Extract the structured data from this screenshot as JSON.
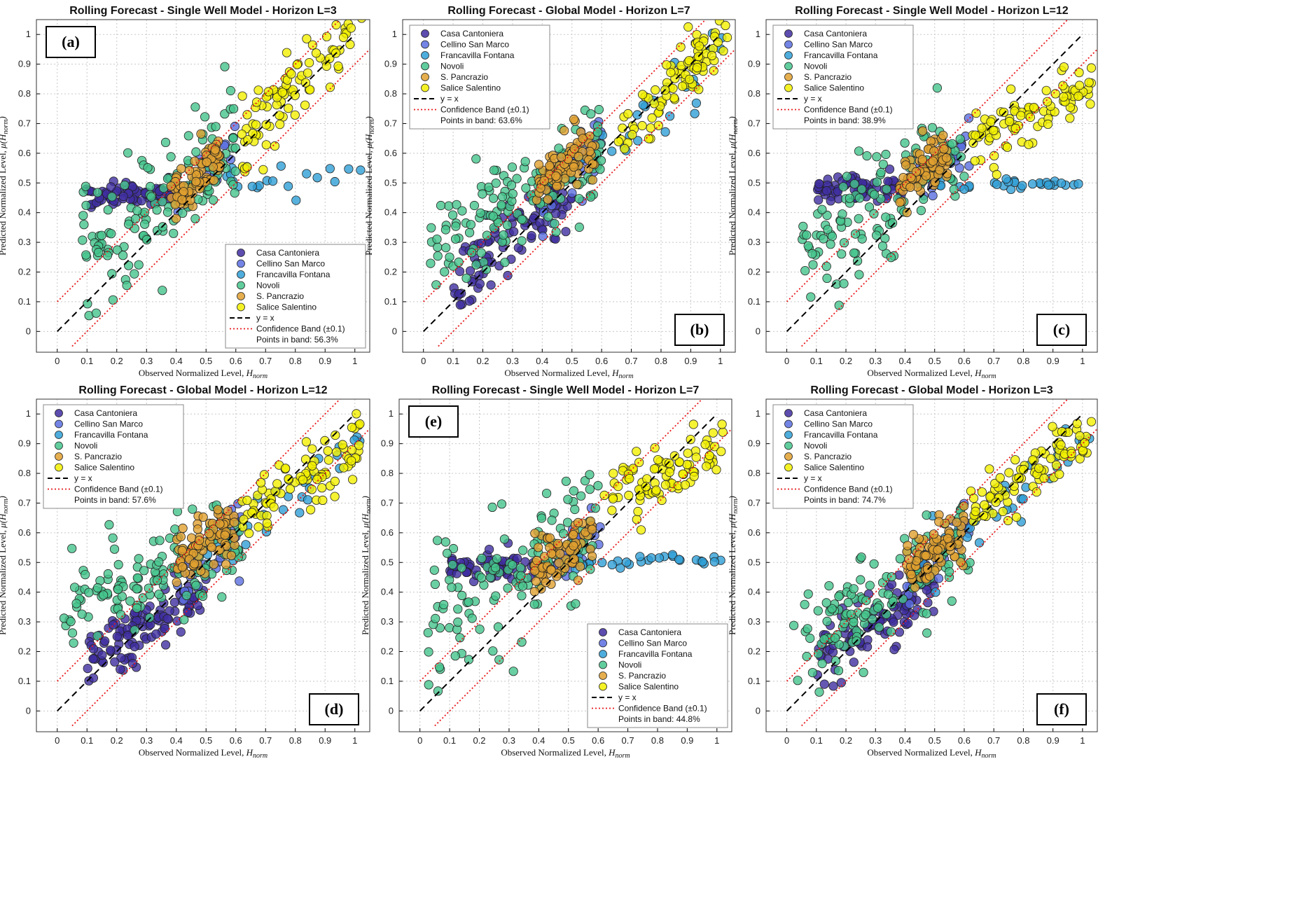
{
  "colors": {
    "Casa Cantoniera": "#3f2ea0",
    "Cellino San Marco": "#5a6ee0",
    "Francavilla Fontana": "#2f9fd6",
    "Novoli": "#45c48c",
    "S. Pancrazio": "#e0a030",
    "Salice Salentino": "#f2f000",
    "yx_line": "#000000",
    "band_line": "#e8191c"
  },
  "common": {
    "xlabel": "Observed Normalized Level, ",
    "xlabel_sym": "H",
    "xlabel_sub": "norm",
    "ylabel": "Predicted Normalized Level, ",
    "ylabel_sym": "μ(H",
    "ylabel_sub": "norm",
    "ylabel_end": ")",
    "legend_wells": [
      "Casa Cantoniera",
      "Cellino San Marco",
      "Francavilla Fontana",
      "Novoli",
      "S. Pancrazio",
      "Salice Salentino"
    ],
    "legend_yx": "y = x",
    "legend_band": "Confidence Band (±0.1)",
    "xticks": [
      "0",
      "0.1",
      "0.2",
      "0.3",
      "0.4",
      "0.5",
      "0.6",
      "0.7",
      "0.8",
      "0.9",
      "1"
    ],
    "yticks": [
      "0",
      "0.1",
      "0.2",
      "0.3",
      "0.4",
      "0.5",
      "0.6",
      "0.7",
      "0.8",
      "0.9",
      "1"
    ]
  },
  "chart_data": [
    {
      "type": "scatter",
      "panel": "(a)",
      "title": "Rolling Forecast - Single Well Model - Horizon L=3",
      "band_text": "Points in band: 56.3%",
      "legend_position": "bottom-right",
      "xlim": [
        -0.07,
        1.05
      ],
      "ylim": [
        -0.07,
        1.05
      ],
      "series": {
        "Casa Cantoniera": {
          "xr": [
            0.09,
            0.38
          ],
          "yc": [
            0.455,
            0.465
          ],
          "ys": 0.02,
          "n": 70
        },
        "Cellino San Marco": {
          "xr": [
            0.4,
            0.6
          ],
          "ym": 1.0,
          "yb": 0.02,
          "ys": 0.04,
          "n": 30
        },
        "Francavilla Fontana": {
          "xr": [
            0.55,
            1.02
          ],
          "yc": [
            0.5,
            0.56
          ],
          "ys": 0.035,
          "n": 20
        },
        "Novoli": {
          "xr": [
            0.08,
            0.6
          ],
          "yc": [
            0.22,
            0.6
          ],
          "ys": 0.1,
          "n": 140
        },
        "S. Pancrazio": {
          "xr": [
            0.38,
            0.55
          ],
          "yc": [
            0.43,
            0.6
          ],
          "ys": 0.045,
          "n": 80
        },
        "Salice Salentino": {
          "xr": [
            0.62,
            1.03
          ],
          "ym": 1.0,
          "yb": 0.03,
          "ys": 0.06,
          "n": 90
        }
      }
    },
    {
      "type": "scatter",
      "panel": "(b)",
      "title": "Rolling Forecast - Global Model - Horizon L=7",
      "band_text": "Points in band: 63.6%",
      "legend_position": "top-left",
      "xlim": [
        -0.07,
        1.05
      ],
      "ylim": [
        -0.07,
        1.05
      ],
      "series": {
        "Casa Cantoniera": {
          "xr": [
            0.1,
            0.5
          ],
          "yc": [
            0.15,
            0.48
          ],
          "ys": 0.06,
          "n": 100
        },
        "Cellino San Marco": {
          "xr": [
            0.4,
            0.6
          ],
          "ym": 1.0,
          "yb": 0.05,
          "ys": 0.05,
          "n": 35
        },
        "Francavilla Fontana": {
          "xr": [
            0.5,
            1.02
          ],
          "ym": 0.8,
          "yb": 0.12,
          "ys": 0.05,
          "n": 25
        },
        "Novoli": {
          "xr": [
            0.02,
            0.6
          ],
          "yc": [
            0.3,
            0.58
          ],
          "ys": 0.09,
          "n": 140
        },
        "S. Pancrazio": {
          "xr": [
            0.38,
            0.58
          ],
          "yc": [
            0.5,
            0.63
          ],
          "ys": 0.045,
          "n": 85
        },
        "Salice Salentino": {
          "xr": [
            0.65,
            1.03
          ],
          "ym": 0.95,
          "yb": 0.03,
          "ys": 0.05,
          "n": 90
        }
      }
    },
    {
      "type": "scatter",
      "panel": "(c)",
      "title": "Rolling Forecast - Single Well Model - Horizon L=12",
      "band_text": "Points in band: 38.9%",
      "legend_position": "top-left",
      "xlim": [
        -0.07,
        1.05
      ],
      "ylim": [
        -0.07,
        1.05
      ],
      "series": {
        "Casa Cantoniera": {
          "xr": [
            0.1,
            0.4
          ],
          "yc": [
            0.48,
            0.49
          ],
          "ys": 0.022,
          "n": 70
        },
        "Cellino San Marco": {
          "xr": [
            0.45,
            0.62
          ],
          "ym": 0.9,
          "yb": 0.08,
          "ys": 0.04,
          "n": 30
        },
        "Francavilla Fontana": {
          "xr": [
            0.5,
            1.0
          ],
          "yc": [
            0.49,
            0.5
          ],
          "ys": 0.012,
          "n": 30
        },
        "Novoli": {
          "xr": [
            0.05,
            0.6
          ],
          "yc": [
            0.3,
            0.62
          ],
          "ys": 0.11,
          "n": 130
        },
        "S. Pancrazio": {
          "xr": [
            0.38,
            0.55
          ],
          "yc": [
            0.5,
            0.6
          ],
          "ys": 0.04,
          "n": 80
        },
        "Salice Salentino": {
          "xr": [
            0.62,
            1.03
          ],
          "yc": [
            0.62,
            0.85
          ],
          "ys": 0.05,
          "n": 90
        }
      }
    },
    {
      "type": "scatter",
      "panel": "(d)",
      "title": "Rolling Forecast - Global Model - Horizon L=12",
      "band_text": "Points in band: 57.6%",
      "legend_position": "top-left",
      "xlim": [
        -0.07,
        1.05
      ],
      "ylim": [
        -0.07,
        1.05
      ],
      "series": {
        "Casa Cantoniera": {
          "xr": [
            0.1,
            0.5
          ],
          "yc": [
            0.17,
            0.42
          ],
          "ys": 0.05,
          "n": 110
        },
        "Cellino San Marco": {
          "xr": [
            0.4,
            0.62
          ],
          "ym": 0.95,
          "yb": 0.05,
          "ys": 0.05,
          "n": 35
        },
        "Francavilla Fontana": {
          "xr": [
            0.5,
            1.03
          ],
          "ym": 0.75,
          "yb": 0.15,
          "ys": 0.05,
          "n": 25
        },
        "Novoli": {
          "xr": [
            0.02,
            0.62
          ],
          "yc": [
            0.34,
            0.58
          ],
          "ys": 0.07,
          "n": 140
        },
        "S. Pancrazio": {
          "xr": [
            0.4,
            0.6
          ],
          "yc": [
            0.5,
            0.62
          ],
          "ys": 0.05,
          "n": 85
        },
        "Salice Salentino": {
          "xr": [
            0.62,
            1.03
          ],
          "yc": [
            0.66,
            0.9
          ],
          "ys": 0.05,
          "n": 90
        }
      }
    },
    {
      "type": "scatter",
      "panel": "(e)",
      "title": "Rolling Forecast - Single Well Model - Horizon L=7",
      "band_text": "Points in band: 44.8%",
      "legend_position": "bottom-right",
      "xlim": [
        -0.07,
        1.05
      ],
      "ylim": [
        -0.07,
        1.05
      ],
      "series": {
        "Casa Cantoniera": {
          "xr": [
            0.1,
            0.4
          ],
          "yc": [
            0.48,
            0.49
          ],
          "ys": 0.022,
          "n": 70
        },
        "Cellino San Marco": {
          "xr": [
            0.45,
            0.62
          ],
          "ym": 0.9,
          "yb": 0.07,
          "ys": 0.04,
          "n": 30
        },
        "Francavilla Fontana": {
          "xr": [
            0.5,
            1.02
          ],
          "yc": [
            0.5,
            0.51
          ],
          "ys": 0.012,
          "n": 30
        },
        "Novoli": {
          "xr": [
            0.02,
            0.6
          ],
          "yc": [
            0.28,
            0.62
          ],
          "ys": 0.11,
          "n": 130
        },
        "S. Pancrazio": {
          "xr": [
            0.38,
            0.58
          ],
          "yc": [
            0.47,
            0.58
          ],
          "ys": 0.04,
          "n": 80
        },
        "Salice Salentino": {
          "xr": [
            0.62,
            1.02
          ],
          "yc": [
            0.72,
            0.86
          ],
          "ys": 0.05,
          "n": 90
        }
      }
    },
    {
      "type": "scatter",
      "panel": "(f)",
      "title": "Rolling Forecast - Global Model - Horizon L=3",
      "band_text": "Points in band: 74.7%",
      "legend_position": "top-left",
      "xlim": [
        -0.07,
        1.05
      ],
      "ylim": [
        -0.07,
        1.05
      ],
      "series": {
        "Casa Cantoniera": {
          "xr": [
            0.1,
            0.5
          ],
          "yc": [
            0.15,
            0.45
          ],
          "ys": 0.05,
          "n": 110
        },
        "Cellino San Marco": {
          "xr": [
            0.4,
            0.62
          ],
          "ym": 0.95,
          "yb": 0.03,
          "ys": 0.04,
          "n": 35
        },
        "Francavilla Fontana": {
          "xr": [
            0.45,
            1.03
          ],
          "ym": 0.85,
          "yb": 0.08,
          "ys": 0.05,
          "n": 30
        },
        "Novoli": {
          "xr": [
            0.02,
            0.62
          ],
          "yc": [
            0.22,
            0.55
          ],
          "ys": 0.08,
          "n": 140
        },
        "S. Pancrazio": {
          "xr": [
            0.4,
            0.6
          ],
          "yc": [
            0.47,
            0.6
          ],
          "ys": 0.045,
          "n": 85
        },
        "Salice Salentino": {
          "xr": [
            0.62,
            1.03
          ],
          "yc": [
            0.68,
            0.94
          ],
          "ys": 0.05,
          "n": 90
        }
      }
    }
  ]
}
